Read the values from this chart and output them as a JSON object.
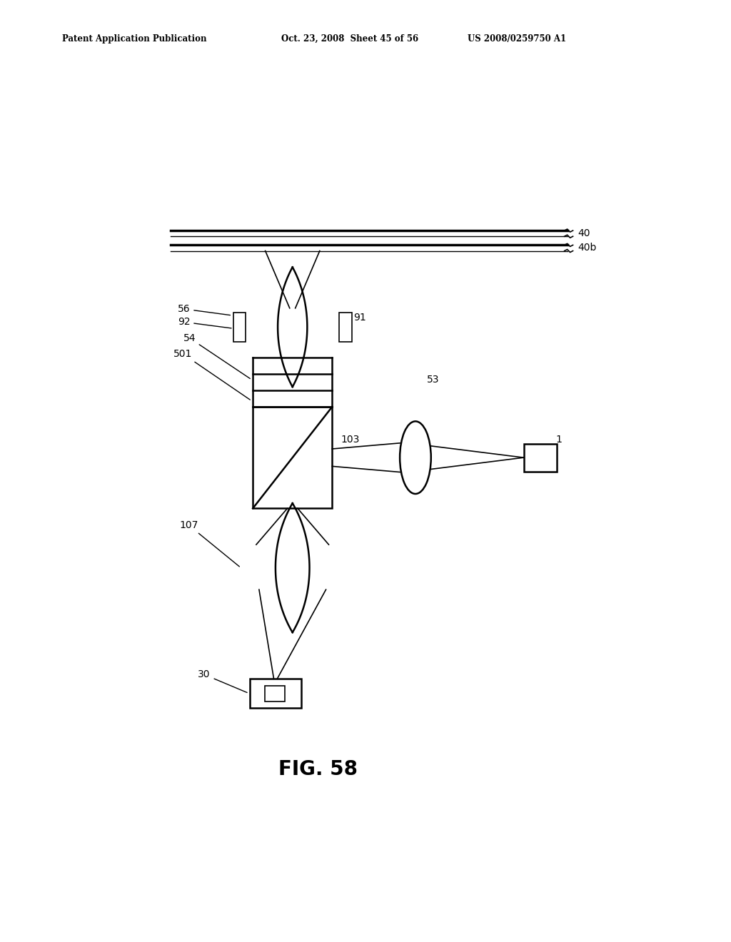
{
  "bg_color": "#ffffff",
  "header_left": "Patent Application Publication",
  "header_mid": "Oct. 23, 2008  Sheet 45 of 56",
  "header_right": "US 2008/0259750 A1",
  "fig_label": "FIG. 58",
  "line_color": "#000000"
}
